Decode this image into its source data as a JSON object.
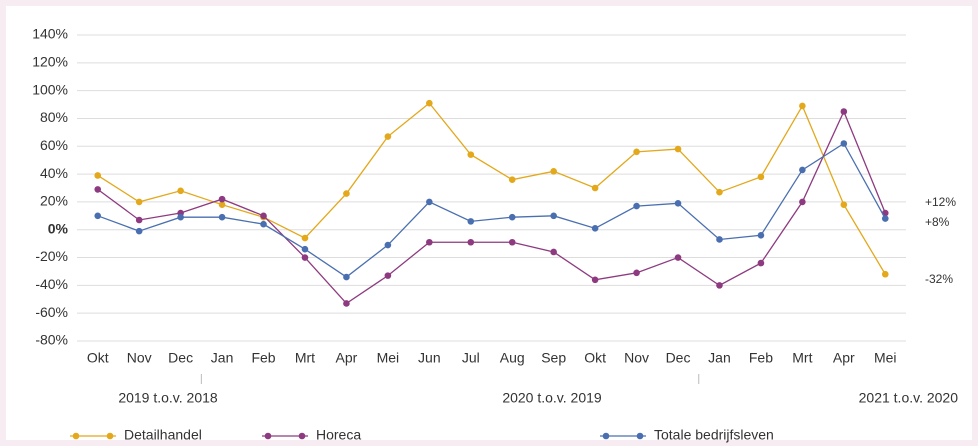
{
  "chart_data": {
    "type": "line",
    "categories": [
      "Okt",
      "Nov",
      "Dec",
      "Jan",
      "Feb",
      "Mrt",
      "Apr",
      "Mei",
      "Jun",
      "Jul",
      "Aug",
      "Sep",
      "Okt",
      "Nov",
      "Dec",
      "Jan",
      "Feb",
      "Mrt",
      "Apr",
      "Mei"
    ],
    "series": [
      {
        "name": "Detailhandel",
        "color": "#e3a81b",
        "values": [
          39,
          20,
          28,
          18,
          9,
          -6,
          26,
          67,
          91,
          54,
          36,
          42,
          30,
          56,
          58,
          27,
          38,
          89,
          18,
          -32
        ]
      },
      {
        "name": "Horeca",
        "color": "#8e3a80",
        "values": [
          29,
          7,
          12,
          22,
          10,
          -20,
          -53,
          -33,
          -9,
          -9,
          -9,
          -16,
          -36,
          -31,
          -20,
          -40,
          -24,
          20,
          85,
          12
        ]
      },
      {
        "name": "Totale bedrijfsleven",
        "color": "#4a6fb0",
        "values": [
          10,
          -1,
          9,
          9,
          4,
          -14,
          -34,
          -11,
          20,
          6,
          9,
          10,
          1,
          17,
          19,
          -7,
          -4,
          43,
          62,
          8
        ]
      }
    ],
    "ylim": [
      -80,
      140
    ],
    "yticks": [
      {
        "value": -80,
        "label": "-80%"
      },
      {
        "value": -60,
        "label": "-60%"
      },
      {
        "value": -40,
        "label": "-40%"
      },
      {
        "value": -20,
        "label": "-20%"
      },
      {
        "value": 0,
        "label": "0%"
      },
      {
        "value": 20,
        "label": "20%"
      },
      {
        "value": 40,
        "label": "40%"
      },
      {
        "value": 60,
        "label": "60%"
      },
      {
        "value": 80,
        "label": "80%"
      },
      {
        "value": 100,
        "label": "100%"
      },
      {
        "value": 120,
        "label": "120%"
      },
      {
        "value": 140,
        "label": "140%"
      }
    ],
    "grid": true,
    "groups": [
      "2019 t.o.v. 2018",
      "2020 t.o.v. 2019",
      "2021 t.o.v. 2020"
    ],
    "annotations": [
      "+12%",
      "+8%",
      "-32%"
    ],
    "legend": "bottom"
  }
}
